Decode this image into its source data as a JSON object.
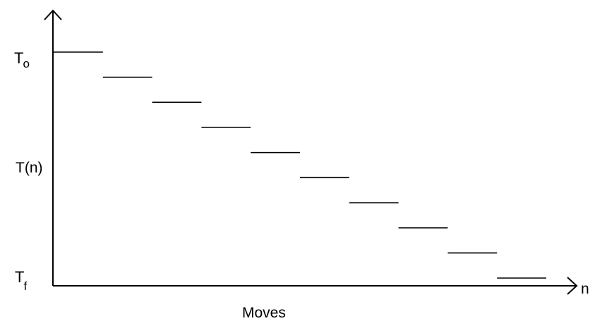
{
  "chart_data": {
    "type": "line",
    "y_labels": {
      "top": {
        "main": "T",
        "sub": "o"
      },
      "middle": "T(n)",
      "bottom": {
        "main": "T",
        "sub": "f"
      }
    },
    "x_axis_label": "n",
    "xlabel": "Moves",
    "steps": [
      {
        "start": 0,
        "end": 1,
        "level": 10
      },
      {
        "start": 1,
        "end": 2,
        "level": 9
      },
      {
        "start": 2,
        "end": 3,
        "level": 8
      },
      {
        "start": 3,
        "end": 4,
        "level": 7
      },
      {
        "start": 4,
        "end": 5,
        "level": 6
      },
      {
        "start": 5,
        "end": 6,
        "level": 5
      },
      {
        "start": 6,
        "end": 7,
        "level": 4
      },
      {
        "start": 7,
        "end": 8,
        "level": 3
      },
      {
        "start": 8,
        "end": 9,
        "level": 2
      },
      {
        "start": 9,
        "end": 10,
        "level": 1
      }
    ],
    "level_range": [
      0,
      10
    ],
    "x_range": [
      0,
      10
    ]
  }
}
